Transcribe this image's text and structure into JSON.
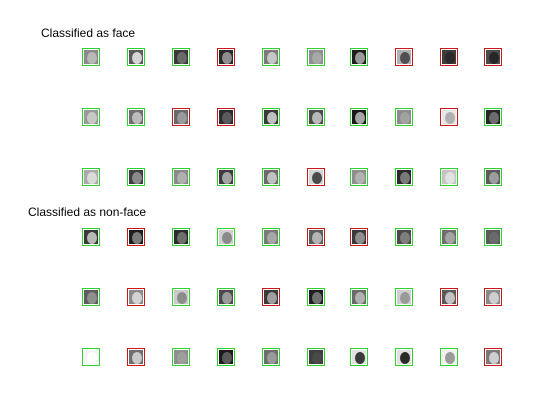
{
  "sections": [
    {
      "title": "Classified as face",
      "rows": [
        [
          {
            "border": "green",
            "tone": "#8a8a8a",
            "face": "#b8b8b8"
          },
          {
            "border": "green",
            "tone": "#5a5a5a",
            "face": "#d6d6d6"
          },
          {
            "border": "green",
            "tone": "#3a3a3a",
            "face": "#6a6a6a"
          },
          {
            "border": "red",
            "tone": "#2a2a2a",
            "face": "#8e8e8e"
          },
          {
            "border": "green",
            "tone": "#7a7a7a",
            "face": "#c6c6c6"
          },
          {
            "border": "green",
            "tone": "#8e8e8e",
            "face": "#a8a8a8"
          },
          {
            "border": "green",
            "tone": "#1e1e1e",
            "face": "#9a9a9a"
          },
          {
            "border": "red",
            "tone": "#b0b0b0",
            "face": "#505050"
          },
          {
            "border": "red",
            "tone": "#3c3c3c",
            "face": "#2a2a2a"
          },
          {
            "border": "red",
            "tone": "#4a4a4a",
            "face": "#262626"
          }
        ],
        [
          {
            "border": "green",
            "tone": "#9a9a9a",
            "face": "#c8c8c8"
          },
          {
            "border": "green",
            "tone": "#6e6e6e",
            "face": "#bcbcbc"
          },
          {
            "border": "red",
            "tone": "#6a6a6a",
            "face": "#9a9a9a"
          },
          {
            "border": "red",
            "tone": "#2c2c2c",
            "face": "#5a5a5a"
          },
          {
            "border": "green",
            "tone": "#3a3a3a",
            "face": "#c0c0c0"
          },
          {
            "border": "green",
            "tone": "#4c4c4c",
            "face": "#b8b8b8"
          },
          {
            "border": "green",
            "tone": "#1a1a1a",
            "face": "#a6a6a6"
          },
          {
            "border": "green",
            "tone": "#8c8c8c",
            "face": "#a2a2a2"
          },
          {
            "border": "red",
            "tone": "#e6e6e6",
            "face": "#b0b0b0"
          },
          {
            "border": "green",
            "tone": "#262626",
            "face": "#6c6c6c"
          }
        ],
        [
          {
            "border": "green",
            "tone": "#aaaaaa",
            "face": "#dadada"
          },
          {
            "border": "green",
            "tone": "#3e3e3e",
            "face": "#8a8a8a"
          },
          {
            "border": "green",
            "tone": "#8a8a8a",
            "face": "#b0b0b0"
          },
          {
            "border": "green",
            "tone": "#3c3c3c",
            "face": "#a4a4a4"
          },
          {
            "border": "green",
            "tone": "#6a6a6a",
            "face": "#c0c0c0"
          },
          {
            "border": "red",
            "tone": "#d4d4d4",
            "face": "#4a4a4a"
          },
          {
            "border": "green",
            "tone": "#8e8e8e",
            "face": "#b2b2b2"
          },
          {
            "border": "green",
            "tone": "#2a2a2a",
            "face": "#7a7a7a"
          },
          {
            "border": "green",
            "tone": "#c4c4c4",
            "face": "#e2e2e2"
          },
          {
            "border": "green",
            "tone": "#5a5a5a",
            "face": "#9c9c9c"
          }
        ]
      ]
    },
    {
      "title": "Classified as non-face",
      "rows": [
        [
          {
            "border": "green",
            "tone": "#3a3a3a",
            "face": "#b8b8b8"
          },
          {
            "border": "red",
            "tone": "#1e1e1e",
            "face": "#7a7a7a"
          },
          {
            "border": "green",
            "tone": "#2c2c2c",
            "face": "#6e6e6e"
          },
          {
            "border": "green",
            "tone": "#d0d0d0",
            "face": "#8a8a8a"
          },
          {
            "border": "green",
            "tone": "#7a7a7a",
            "face": "#a6a6a6"
          },
          {
            "border": "red",
            "tone": "#5c5c5c",
            "face": "#b4b4b4"
          },
          {
            "border": "red",
            "tone": "#3a3a3a",
            "face": "#8e8e8e"
          },
          {
            "border": "green",
            "tone": "#4a4a4a",
            "face": "#7e7e7e"
          },
          {
            "border": "green",
            "tone": "#6e6e6e",
            "face": "#a4a4a4"
          },
          {
            "border": "green",
            "tone": "#5a5a5a",
            "face": "#6a6a6a"
          }
        ],
        [
          {
            "border": "green",
            "tone": "#5e5e5e",
            "face": "#8e8e8e"
          },
          {
            "border": "red",
            "tone": "#8a8a8a",
            "face": "#d4d4d4"
          },
          {
            "border": "green",
            "tone": "#cacaca",
            "face": "#8c8c8c"
          },
          {
            "border": "green",
            "tone": "#4a4a4a",
            "face": "#9a9a9a"
          },
          {
            "border": "red",
            "tone": "#3a3a3a",
            "face": "#9e9e9e"
          },
          {
            "border": "green",
            "tone": "#1e1e1e",
            "face": "#707070"
          },
          {
            "border": "green",
            "tone": "#6a6a6a",
            "face": "#b2b2b2"
          },
          {
            "border": "green",
            "tone": "#cfcfcf",
            "face": "#9a9a9a"
          },
          {
            "border": "red",
            "tone": "#5a5a5a",
            "face": "#c2c2c2"
          },
          {
            "border": "red",
            "tone": "#8a8a8a",
            "face": "#cecece"
          }
        ],
        [
          {
            "border": "green",
            "tone": "#f4f4f4",
            "face": "#ffffff"
          },
          {
            "border": "red",
            "tone": "#6e6e6e",
            "face": "#cacaca"
          },
          {
            "border": "green",
            "tone": "#8e8e8e",
            "face": "#9e9e9e"
          },
          {
            "border": "green",
            "tone": "#1c1c1c",
            "face": "#5a5a5a"
          },
          {
            "border": "green",
            "tone": "#6e6e6e",
            "face": "#9a9a9a"
          },
          {
            "border": "green",
            "tone": "#3e3e3e",
            "face": "#4a4a4a"
          },
          {
            "border": "green",
            "tone": "#e2e2e2",
            "face": "#3a3a3a"
          },
          {
            "border": "green",
            "tone": "#e0e0e0",
            "face": "#2a2a2a"
          },
          {
            "border": "green",
            "tone": "#f0f0f0",
            "face": "#9a9a9a"
          },
          {
            "border": "red",
            "tone": "#7a7a7a",
            "face": "#cecece"
          }
        ]
      ]
    }
  ],
  "colors": {
    "green_border": "#2fd12f",
    "red_border": "#c81818"
  }
}
